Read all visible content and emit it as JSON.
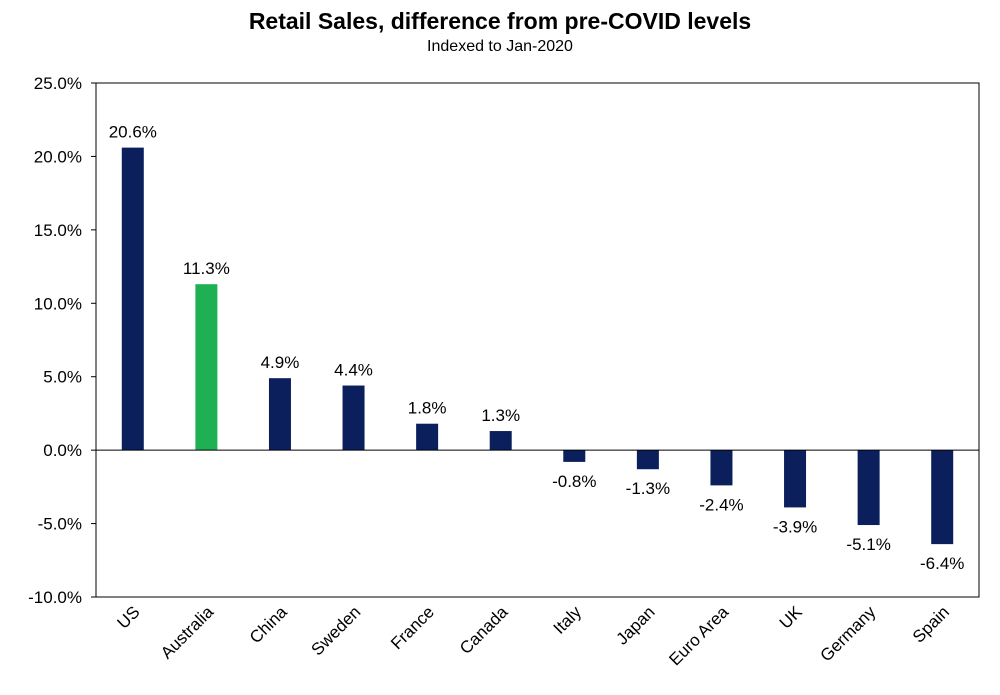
{
  "chart_data": {
    "type": "bar",
    "title": "Retail Sales, difference from pre-COVID levels",
    "subtitle": "Indexed to Jan-2020",
    "categories": [
      "US",
      "Australia",
      "China",
      "Sweden",
      "France",
      "Canada",
      "Italy",
      "Japan",
      "Euro Area",
      "UK",
      "Germany",
      "Spain"
    ],
    "values": [
      20.6,
      11.3,
      4.9,
      4.4,
      1.8,
      1.3,
      -0.8,
      -1.3,
      -2.4,
      -3.9,
      -5.1,
      -6.4
    ],
    "data_labels": [
      "20.6%",
      "11.3%",
      "4.9%",
      "4.4%",
      "1.8%",
      "1.3%",
      "-0.8%",
      "-1.3%",
      "-2.4%",
      "-3.9%",
      "-5.1%",
      "-6.4%"
    ],
    "ylim": [
      -10,
      25
    ],
    "yticks": [
      25,
      20,
      15,
      10,
      5,
      0,
      -5,
      -10
    ],
    "ytick_labels": [
      "25.0%",
      "20.0%",
      "15.0%",
      "10.0%",
      "5.0%",
      "0.0%",
      "-5.0%",
      "-10.0%"
    ],
    "xlabel": "",
    "ylabel": "",
    "grid": false,
    "legend": "none",
    "colors": {
      "default": "#0a1f5c",
      "highlight": "#1db154",
      "highlight_category": "Australia"
    }
  }
}
